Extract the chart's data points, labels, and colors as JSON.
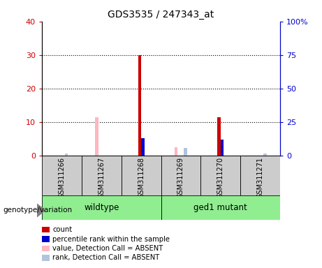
{
  "title": "GDS3535 / 247343_at",
  "samples": [
    "GSM311266",
    "GSM311267",
    "GSM311268",
    "GSM311269",
    "GSM311270",
    "GSM311271"
  ],
  "count_values": [
    0,
    0,
    30,
    0,
    11.5,
    0
  ],
  "count_color": "#CC0000",
  "percentile_values": [
    0,
    0,
    13,
    0,
    12,
    0
  ],
  "percentile_color": "#0000CC",
  "absent_value_values": [
    0,
    11.5,
    0,
    2.5,
    0,
    0
  ],
  "absent_value_color": "#FFB6C1",
  "absent_rank_values": [
    1.5,
    0,
    0,
    5.5,
    0,
    1.5
  ],
  "absent_rank_color": "#B0C4DE",
  "ylim_left": [
    0,
    40
  ],
  "ylim_right": [
    0,
    100
  ],
  "yticks_left": [
    0,
    10,
    20,
    30,
    40
  ],
  "yticks_right": [
    0,
    25,
    50,
    75,
    100
  ],
  "ytick_labels_right": [
    "0",
    "25",
    "50",
    "75",
    "100%"
  ],
  "bar_width": 0.08,
  "bg_color": "#CCCCCC",
  "left_axis_color": "#CC0000",
  "right_axis_color": "#0000CC",
  "wildtype_color": "#90EE90",
  "mutant_color": "#90EE90",
  "legend_items": [
    [
      "#CC0000",
      "count"
    ],
    [
      "#0000CC",
      "percentile rank within the sample"
    ],
    [
      "#FFB6C1",
      "value, Detection Call = ABSENT"
    ],
    [
      "#B0C4DE",
      "rank, Detection Call = ABSENT"
    ]
  ]
}
